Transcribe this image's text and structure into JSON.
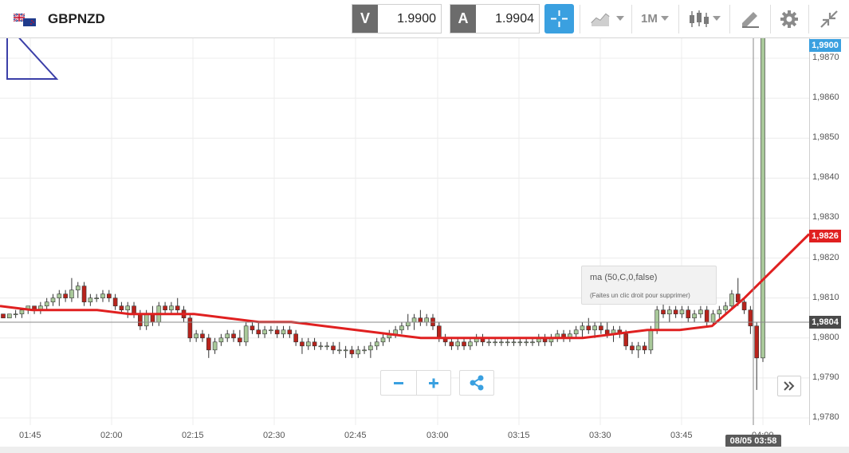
{
  "toolbar": {
    "symbol": "GBPNZD",
    "sell_tag": "V",
    "sell_price": "1.9900",
    "buy_tag": "A",
    "buy_price": "1.9904",
    "timeframe": "1M"
  },
  "chart": {
    "price_ticks": [
      "1,9870",
      "1,9860",
      "1,9850",
      "1,9840",
      "1,9830",
      "1,9820",
      "1,9810",
      "1,9800",
      "1,9790",
      "1,9780"
    ],
    "time_ticks": [
      "01:45",
      "02:00",
      "02:15",
      "02:30",
      "02:45",
      "03:00",
      "03:15",
      "03:30",
      "03:45",
      "04:00"
    ],
    "top_price_badge": "1,9900",
    "ma_price_badge": "1,9826",
    "crosshair_price_badge": "1,9804",
    "crosshair_time_badge": "08/05 03:58",
    "tooltip_title": "ma (50,C,0,false)",
    "tooltip_hint": "(Faites un clic droit pour supprimer)",
    "colors": {
      "up_candle": "#a9c99a",
      "down_candle": "#b8231c",
      "ma_line": "#e02020",
      "accent": "#3aa0e0",
      "drawing": "#3b3fa8"
    }
  },
  "chart_data": {
    "type": "candlestick",
    "symbol": "GBPNZD",
    "x_axis_ticks": [
      "01:45",
      "02:00",
      "02:15",
      "02:30",
      "02:45",
      "03:00",
      "03:15",
      "03:30",
      "03:45",
      "04:00"
    ],
    "y_axis_ticks": [
      1.987,
      1.986,
      1.985,
      1.984,
      1.983,
      1.982,
      1.981,
      1.98,
      1.979,
      1.978
    ],
    "ylim": [
      1.9778,
      1.9876
    ],
    "grid": true,
    "candles": [
      [
        1.9806,
        1.9806,
        1.9805,
        1.9805
      ],
      [
        1.9805,
        1.9806,
        1.9805,
        1.9806
      ],
      [
        1.9806,
        1.9807,
        1.9805,
        1.9806
      ],
      [
        1.9806,
        1.9807,
        1.9805,
        1.9807
      ],
      [
        1.9807,
        1.9808,
        1.9806,
        1.9808
      ],
      [
        1.9808,
        1.9808,
        1.9806,
        1.9807
      ],
      [
        1.9807,
        1.9809,
        1.9806,
        1.9808
      ],
      [
        1.9808,
        1.981,
        1.9807,
        1.9809
      ],
      [
        1.9809,
        1.9811,
        1.9808,
        1.981
      ],
      [
        1.981,
        1.9812,
        1.9808,
        1.9811
      ],
      [
        1.9811,
        1.9812,
        1.9809,
        1.981
      ],
      [
        1.981,
        1.9815,
        1.9809,
        1.9812
      ],
      [
        1.9812,
        1.9814,
        1.981,
        1.9813
      ],
      [
        1.9813,
        1.9814,
        1.9808,
        1.9809
      ],
      [
        1.9809,
        1.9811,
        1.9808,
        1.981
      ],
      [
        1.981,
        1.9811,
        1.9809,
        1.981
      ],
      [
        1.981,
        1.9812,
        1.9809,
        1.9811
      ],
      [
        1.9811,
        1.9812,
        1.9809,
        1.981
      ],
      [
        1.981,
        1.9811,
        1.9807,
        1.9808
      ],
      [
        1.9808,
        1.9809,
        1.9806,
        1.9807
      ],
      [
        1.9807,
        1.9809,
        1.9805,
        1.9808
      ],
      [
        1.9808,
        1.9809,
        1.9805,
        1.9806
      ],
      [
        1.9806,
        1.9807,
        1.9802,
        1.9803
      ],
      [
        1.9803,
        1.9807,
        1.9802,
        1.9806
      ],
      [
        1.9806,
        1.9808,
        1.9803,
        1.9804
      ],
      [
        1.9804,
        1.9809,
        1.9803,
        1.9808
      ],
      [
        1.9808,
        1.9809,
        1.9806,
        1.9807
      ],
      [
        1.9807,
        1.9809,
        1.9806,
        1.9808
      ],
      [
        1.9808,
        1.981,
        1.9806,
        1.9807
      ],
      [
        1.9807,
        1.9808,
        1.9804,
        1.9805
      ],
      [
        1.9805,
        1.9806,
        1.9799,
        1.98
      ],
      [
        1.98,
        1.9802,
        1.9799,
        1.9801
      ],
      [
        1.9801,
        1.9802,
        1.9799,
        1.98
      ],
      [
        1.98,
        1.9801,
        1.9795,
        1.9797
      ],
      [
        1.9797,
        1.98,
        1.9796,
        1.9799
      ],
      [
        1.9799,
        1.9801,
        1.9798,
        1.98
      ],
      [
        1.98,
        1.9802,
        1.9799,
        1.9801
      ],
      [
        1.9801,
        1.9802,
        1.9799,
        1.98
      ],
      [
        1.98,
        1.9802,
        1.9798,
        1.9799
      ],
      [
        1.9799,
        1.9804,
        1.9798,
        1.9803
      ],
      [
        1.9803,
        1.9804,
        1.9801,
        1.9802
      ],
      [
        1.9802,
        1.9804,
        1.98,
        1.9801
      ],
      [
        1.9801,
        1.9803,
        1.98,
        1.9802
      ],
      [
        1.9802,
        1.9803,
        1.9801,
        1.9802
      ],
      [
        1.9802,
        1.9803,
        1.98,
        1.9801
      ],
      [
        1.9801,
        1.9803,
        1.98,
        1.9802
      ],
      [
        1.9802,
        1.9803,
        1.98,
        1.9801
      ],
      [
        1.9801,
        1.9802,
        1.9798,
        1.9799
      ],
      [
        1.9799,
        1.98,
        1.9796,
        1.9798
      ],
      [
        1.9798,
        1.98,
        1.9797,
        1.9799
      ],
      [
        1.9799,
        1.98,
        1.9797,
        1.9798
      ],
      [
        1.9798,
        1.9799,
        1.9797,
        1.9798
      ],
      [
        1.9798,
        1.9799,
        1.9797,
        1.9798
      ],
      [
        1.9798,
        1.9799,
        1.9796,
        1.9797
      ],
      [
        1.9797,
        1.9799,
        1.9796,
        1.9797
      ],
      [
        1.9797,
        1.9798,
        1.9795,
        1.9797
      ],
      [
        1.9797,
        1.9798,
        1.9795,
        1.9796
      ],
      [
        1.9796,
        1.9798,
        1.9795,
        1.9797
      ],
      [
        1.9797,
        1.9798,
        1.9796,
        1.9797
      ],
      [
        1.9797,
        1.9799,
        1.9795,
        1.9798
      ],
      [
        1.9798,
        1.98,
        1.9797,
        1.9799
      ],
      [
        1.9799,
        1.9801,
        1.9798,
        1.98
      ],
      [
        1.98,
        1.9802,
        1.9799,
        1.9801
      ],
      [
        1.9801,
        1.9803,
        1.98,
        1.9802
      ],
      [
        1.9802,
        1.9804,
        1.9801,
        1.9803
      ],
      [
        1.9803,
        1.9806,
        1.9802,
        1.9804
      ],
      [
        1.9804,
        1.9806,
        1.9802,
        1.9805
      ],
      [
        1.9805,
        1.9807,
        1.9803,
        1.9804
      ],
      [
        1.9804,
        1.9806,
        1.9803,
        1.9805
      ],
      [
        1.9805,
        1.9806,
        1.9802,
        1.9803
      ],
      [
        1.9803,
        1.9804,
        1.9799,
        1.98
      ],
      [
        1.98,
        1.9801,
        1.9798,
        1.9799
      ],
      [
        1.9799,
        1.98,
        1.9797,
        1.9798
      ],
      [
        1.9798,
        1.98,
        1.9797,
        1.9799
      ],
      [
        1.9799,
        1.98,
        1.9797,
        1.9798
      ],
      [
        1.9798,
        1.98,
        1.9797,
        1.9799
      ],
      [
        1.9799,
        1.9801,
        1.9798,
        1.98
      ],
      [
        1.98,
        1.9801,
        1.9798,
        1.9799
      ],
      [
        1.9799,
        1.98,
        1.9798,
        1.9799
      ],
      [
        1.9799,
        1.98,
        1.9798,
        1.9799
      ],
      [
        1.9799,
        1.98,
        1.9798,
        1.9799
      ],
      [
        1.9799,
        1.98,
        1.9798,
        1.9799
      ],
      [
        1.9799,
        1.98,
        1.9798,
        1.9799
      ],
      [
        1.9799,
        1.98,
        1.9798,
        1.9799
      ],
      [
        1.9799,
        1.98,
        1.9798,
        1.9799
      ],
      [
        1.9799,
        1.98,
        1.9798,
        1.9799
      ],
      [
        1.9799,
        1.9801,
        1.9798,
        1.98
      ],
      [
        1.98,
        1.9801,
        1.9798,
        1.9799
      ],
      [
        1.9799,
        1.9801,
        1.9798,
        1.98
      ],
      [
        1.98,
        1.9802,
        1.9799,
        1.9801
      ],
      [
        1.9801,
        1.9802,
        1.9799,
        1.98
      ],
      [
        1.98,
        1.9802,
        1.9799,
        1.9801
      ],
      [
        1.9801,
        1.9803,
        1.98,
        1.9802
      ],
      [
        1.9802,
        1.9804,
        1.98,
        1.9803
      ],
      [
        1.9803,
        1.9805,
        1.9801,
        1.9802
      ],
      [
        1.9802,
        1.9804,
        1.98,
        1.9803
      ],
      [
        1.9803,
        1.9804,
        1.9801,
        1.9802
      ],
      [
        1.9802,
        1.9804,
        1.98,
        1.9801
      ],
      [
        1.9801,
        1.9803,
        1.9799,
        1.9802
      ],
      [
        1.9802,
        1.9803,
        1.98,
        1.9801
      ],
      [
        1.9801,
        1.9802,
        1.9797,
        1.9798
      ],
      [
        1.9798,
        1.9799,
        1.9796,
        1.9797
      ],
      [
        1.9797,
        1.9799,
        1.9795,
        1.9798
      ],
      [
        1.9798,
        1.9799,
        1.9796,
        1.9797
      ],
      [
        1.9797,
        1.9803,
        1.9796,
        1.9802
      ],
      [
        1.9802,
        1.9808,
        1.9801,
        1.9807
      ],
      [
        1.9807,
        1.9809,
        1.9805,
        1.9806
      ],
      [
        1.9806,
        1.9808,
        1.9804,
        1.9807
      ],
      [
        1.9807,
        1.9808,
        1.9805,
        1.9806
      ],
      [
        1.9806,
        1.9808,
        1.9805,
        1.9807
      ],
      [
        1.9807,
        1.9808,
        1.9804,
        1.9805
      ],
      [
        1.9805,
        1.9807,
        1.9804,
        1.9806
      ],
      [
        1.9806,
        1.9808,
        1.9805,
        1.9807
      ],
      [
        1.9807,
        1.9808,
        1.9803,
        1.9804
      ],
      [
        1.9804,
        1.9807,
        1.9803,
        1.9806
      ],
      [
        1.9806,
        1.9808,
        1.9805,
        1.9807
      ],
      [
        1.9807,
        1.9809,
        1.9806,
        1.9808
      ],
      [
        1.9808,
        1.9812,
        1.9807,
        1.9811
      ],
      [
        1.9811,
        1.9815,
        1.9808,
        1.9809
      ],
      [
        1.9809,
        1.981,
        1.9806,
        1.9807
      ],
      [
        1.9807,
        1.9808,
        1.9801,
        1.9803
      ],
      [
        1.9803,
        1.9804,
        1.9787,
        1.9795
      ],
      [
        1.9795,
        1.99,
        1.9794,
        1.99
      ]
    ],
    "series": [
      {
        "name": "ma (50,C,0,false)",
        "type": "line",
        "values": [
          1.9808,
          1.9807,
          1.9807,
          1.9807,
          1.9806,
          1.9806,
          1.9806,
          1.9805,
          1.9804,
          1.9804,
          1.9803,
          1.9802,
          1.9801,
          1.98,
          1.98,
          1.98,
          1.98,
          1.98,
          1.98,
          1.9801,
          1.9802,
          1.9802,
          1.9803,
          1.981,
          1.9818,
          1.9826
        ]
      }
    ]
  }
}
